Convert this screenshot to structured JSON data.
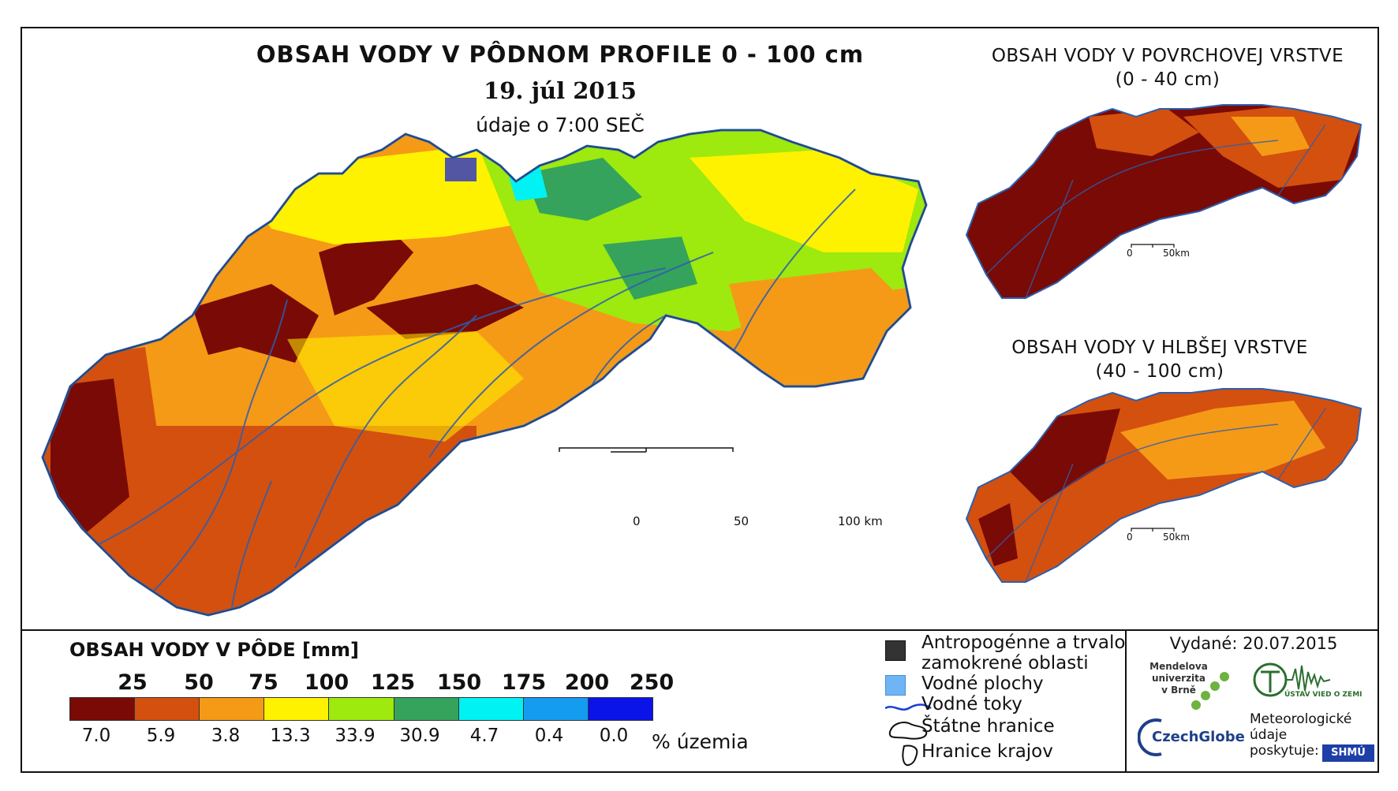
{
  "titles": {
    "main": "OBSAH VODY V PÔDNOM PROFILE 0 - 100 cm",
    "date": "19. júl 2015",
    "time": "údaje o 7:00 SEČ",
    "surface_line1": "OBSAH VODY V POVRCHOVEJ VRSTVE",
    "surface_line2": "(0 - 40 cm)",
    "deep_line1": "OBSAH VODY V HLBŠEJ VRSTVE",
    "deep_line2": "(40 - 100 cm)"
  },
  "scalebar_main": {
    "labels": [
      "0",
      "50",
      "100 km"
    ]
  },
  "scalebar_small": {
    "labels": [
      "0",
      "50km"
    ]
  },
  "legend": {
    "title": "OBSAH VODY V PÔDE [mm]",
    "thresholds": [
      "25",
      "50",
      "75",
      "100",
      "125",
      "150",
      "175",
      "200",
      "250"
    ],
    "colors": [
      "#7a0a05",
      "#d4500f",
      "#f59a16",
      "#fff200",
      "#9ee90e",
      "#35a35c",
      "#00f2f2",
      "#149cf0",
      "#0a14e8"
    ],
    "percentages": [
      "7.0",
      "5.9",
      "3.8",
      "13.3",
      "33.9",
      "30.9",
      "4.7",
      "0.4",
      "0.0"
    ],
    "unit": "% územia"
  },
  "symbols": {
    "anthropogenic_line1": "Antropogénne a trvalo",
    "anthropogenic_line2": "zamokrené oblasti",
    "water_bodies": "Vodné plochy",
    "rivers": "Vodné toky",
    "state_border": "Štátne hranice",
    "regional_border": "Hranice krajov"
  },
  "info": {
    "issued": "Vydané: 20.07.2015",
    "mendel_line1": "Mendelova",
    "mendel_line2": "univerzita",
    "mendel_line3": "v Brně",
    "czechglobe": "CzechGlobe",
    "uvoz": "ÚSTAV VIED O ZEMI",
    "meteo_line1": "Meteorologické",
    "meteo_line2": "údaje",
    "meteo_line3": "poskytuje:",
    "shmu": "SHMÚ"
  },
  "colors": {
    "border": "#111111",
    "river": "#2b5fb0",
    "anthropogenic": "#333333",
    "water_body": "#6fb4f5"
  }
}
